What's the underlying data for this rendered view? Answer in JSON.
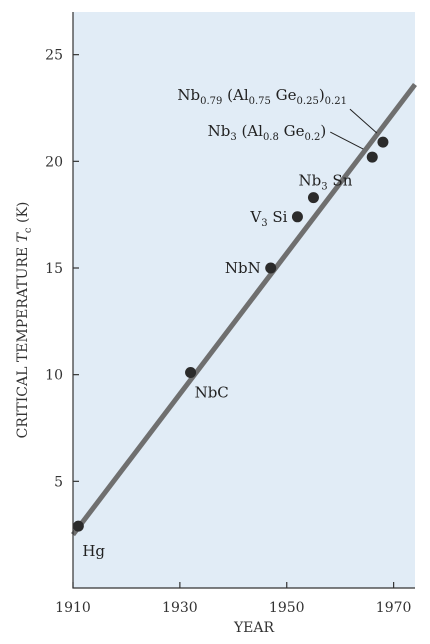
{
  "chart_data": {
    "type": "scatter",
    "title": "",
    "xlabel": "YEAR",
    "ylabel_main": "CRITICAL TEMPERATURE ",
    "ylabel_symbol": "T",
    "ylabel_sub": "c",
    "ylabel_unit": " (K)",
    "xlim": [
      1910,
      1974
    ],
    "ylim": [
      0,
      27
    ],
    "xticks": [
      1910,
      1930,
      1950,
      1970
    ],
    "yticks": [
      5,
      10,
      15,
      20,
      25
    ],
    "grid": false,
    "colors": {
      "plot_background": "#e1ecf6",
      "points": "#2b2b2b",
      "trend_line": "#6f6f6f",
      "axes": "#333333"
    },
    "trend_line": {
      "x": [
        1910,
        1974
      ],
      "y": [
        2.5,
        23.6
      ]
    },
    "points": [
      {
        "x": 1911,
        "y": 2.9,
        "parts": [
          [
            "Hg",
            ""
          ]
        ]
      },
      {
        "x": 1932,
        "y": 10.1,
        "parts": [
          [
            "NbC",
            ""
          ]
        ]
      },
      {
        "x": 1947,
        "y": 15.0,
        "parts": [
          [
            "NbN",
            ""
          ]
        ]
      },
      {
        "x": 1952,
        "y": 17.4,
        "parts": [
          [
            "V",
            "3"
          ],
          [
            " Si",
            ""
          ]
        ]
      },
      {
        "x": 1955,
        "y": 18.3,
        "parts": [
          [
            "Nb",
            "3"
          ],
          [
            " Sn",
            ""
          ]
        ]
      },
      {
        "x": 1966,
        "y": 20.2,
        "parts": [
          [
            "Nb",
            "3"
          ],
          [
            " (Al",
            "0.8"
          ],
          [
            " Ge",
            "0.2"
          ],
          [
            ")",
            ""
          ]
        ]
      },
      {
        "x": 1968,
        "y": 20.9,
        "parts": [
          [
            "Nb",
            "0.79"
          ],
          [
            " (Al",
            "0.75"
          ],
          [
            " Ge",
            "0.25"
          ],
          [
            ")",
            "0.21"
          ]
        ]
      }
    ]
  }
}
